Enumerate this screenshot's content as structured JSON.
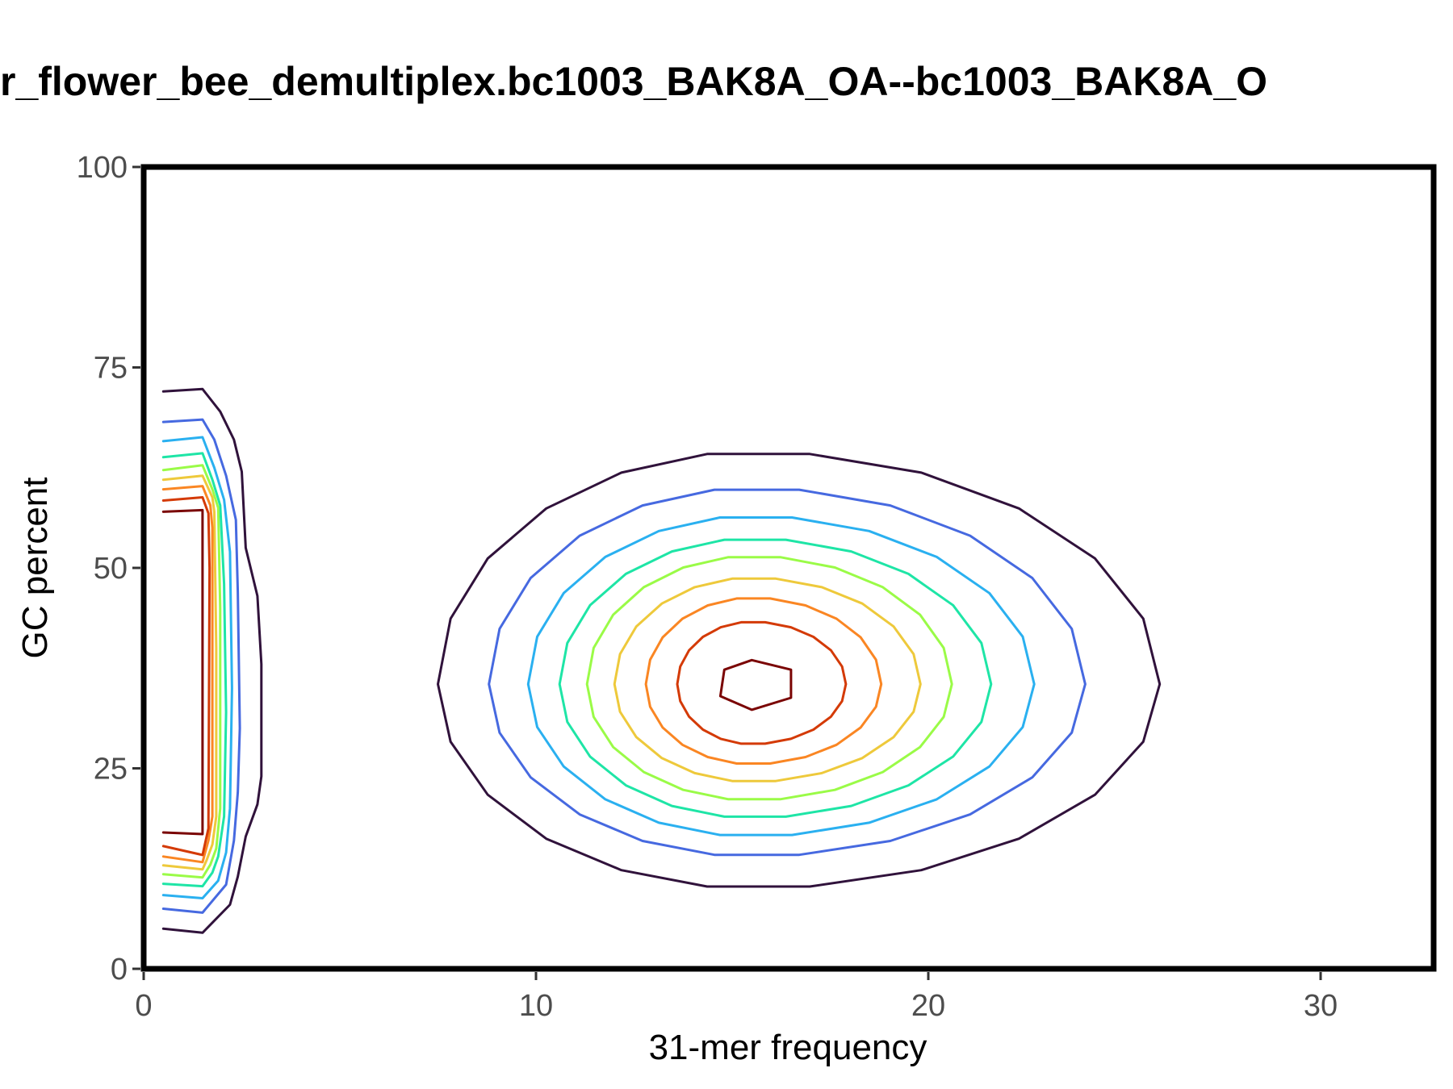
{
  "chart_data": {
    "type": "contour",
    "title": "r_flower_bee_demultiplex.bc1003_BAK8A_OA--bc1003_BAK8A_O",
    "xlabel": "31-mer frequency",
    "ylabel": "GC percent",
    "xlim": [
      0,
      33
    ],
    "ylim": [
      0,
      100
    ],
    "x_ticks": [
      0,
      10,
      20,
      30
    ],
    "x_tick_labels": [
      "0",
      "10",
      "20",
      "30"
    ],
    "y_ticks": [
      0,
      25,
      50,
      75,
      100
    ],
    "y_tick_labels": [
      "0",
      "25",
      "50",
      "75",
      "100"
    ],
    "grid": false,
    "legend": "none",
    "levels": [
      {
        "color": "#30123b"
      },
      {
        "color": "#4669e0"
      },
      {
        "color": "#2ab0f0"
      },
      {
        "color": "#1ee5a6"
      },
      {
        "color": "#9afb47"
      },
      {
        "color": "#eec93b"
      },
      {
        "color": "#fa8623"
      },
      {
        "color": "#d43a06"
      },
      {
        "color": "#7a0403"
      }
    ],
    "peaks": [
      {
        "name": "main-peak",
        "center": [
          15.5,
          35.5
        ],
        "rings": [
          {
            "level": 0,
            "xl": 7.5,
            "xr": 25.9,
            "yt": 64.5,
            "yb": 10.0
          },
          {
            "level": 1,
            "xl": 8.8,
            "xr": 24.0,
            "yt": 60.0,
            "yb": 14.0
          },
          {
            "level": 2,
            "xl": 9.8,
            "xr": 22.7,
            "yt": 56.5,
            "yb": 16.5
          },
          {
            "level": 3,
            "xl": 10.6,
            "xr": 21.6,
            "yt": 53.7,
            "yb": 18.8
          },
          {
            "level": 4,
            "xl": 11.3,
            "xr": 20.6,
            "yt": 51.5,
            "yb": 21.0
          },
          {
            "level": 5,
            "xl": 12.0,
            "xr": 19.8,
            "yt": 48.8,
            "yb": 23.3
          },
          {
            "level": 6,
            "xl": 12.8,
            "xr": 18.8,
            "yt": 46.3,
            "yb": 25.5
          },
          {
            "level": 7,
            "xl": 13.6,
            "xr": 17.9,
            "yt": 43.3,
            "yb": 28.0
          }
        ],
        "core": [
          [
            15.5,
            38.5
          ],
          [
            16.5,
            37.3
          ],
          [
            16.5,
            33.8
          ],
          [
            15.5,
            32.3
          ],
          [
            14.7,
            34.0
          ],
          [
            14.8,
            37.3
          ],
          [
            15.5,
            38.5
          ]
        ]
      },
      {
        "name": "edge-peak",
        "rings": [
          [
            [
              0.5,
              72.0
            ],
            [
              1.5,
              72.3
            ],
            [
              1.95,
              69.5
            ],
            [
              2.3,
              66.0
            ],
            [
              2.5,
              62.0
            ],
            [
              2.6,
              52.5
            ],
            [
              2.9,
              46.5
            ],
            [
              3.0,
              38.0
            ],
            [
              3.0,
              24.0
            ],
            [
              2.9,
              20.5
            ],
            [
              2.6,
              16.5
            ],
            [
              2.4,
              11.5
            ],
            [
              2.2,
              8.0
            ],
            [
              1.5,
              4.5
            ],
            [
              0.5,
              5.0
            ]
          ],
          [
            [
              0.5,
              68.2
            ],
            [
              1.5,
              68.5
            ],
            [
              1.8,
              66.0
            ],
            [
              2.1,
              61.5
            ],
            [
              2.35,
              56.0
            ],
            [
              2.4,
              47.0
            ],
            [
              2.45,
              30.0
            ],
            [
              2.4,
              22.0
            ],
            [
              2.3,
              16.0
            ],
            [
              2.1,
              10.5
            ],
            [
              1.5,
              7.0
            ],
            [
              0.5,
              7.5
            ]
          ],
          [
            [
              0.5,
              65.8
            ],
            [
              1.5,
              66.3
            ],
            [
              1.8,
              62.5
            ],
            [
              2.05,
              58.5
            ],
            [
              2.2,
              52.0
            ],
            [
              2.25,
              35.0
            ],
            [
              2.2,
              20.0
            ],
            [
              2.1,
              14.5
            ],
            [
              1.9,
              11.0
            ],
            [
              1.5,
              8.8
            ],
            [
              0.5,
              9.2
            ]
          ],
          [
            [
              0.5,
              63.8
            ],
            [
              1.5,
              64.3
            ],
            [
              1.75,
              61.0
            ],
            [
              1.95,
              57.8
            ],
            [
              2.05,
              48.0
            ],
            [
              2.1,
              32.0
            ],
            [
              2.05,
              19.0
            ],
            [
              1.9,
              14.0
            ],
            [
              1.75,
              12.0
            ],
            [
              1.5,
              10.3
            ],
            [
              0.5,
              10.6
            ]
          ],
          [
            [
              0.5,
              62.2
            ],
            [
              1.5,
              62.8
            ],
            [
              1.75,
              59.8
            ],
            [
              1.9,
              57.5
            ],
            [
              1.95,
              45.0
            ],
            [
              1.95,
              20.0
            ],
            [
              1.85,
              15.0
            ],
            [
              1.7,
              13.0
            ],
            [
              1.5,
              11.4
            ],
            [
              0.5,
              11.8
            ]
          ],
          [
            [
              0.5,
              61.0
            ],
            [
              1.5,
              61.5
            ],
            [
              1.75,
              58.8
            ],
            [
              1.8,
              57.0
            ],
            [
              1.85,
              40.0
            ],
            [
              1.85,
              19.0
            ],
            [
              1.75,
              15.5
            ],
            [
              1.6,
              13.5
            ],
            [
              1.5,
              12.4
            ],
            [
              0.5,
              12.9
            ]
          ],
          [
            [
              0.5,
              59.8
            ],
            [
              1.5,
              60.2
            ],
            [
              1.7,
              57.8
            ],
            [
              1.75,
              55.0
            ],
            [
              1.75,
              35.0
            ],
            [
              1.75,
              19.0
            ],
            [
              1.65,
              16.0
            ],
            [
              1.5,
              13.3
            ],
            [
              0.5,
              14.0
            ]
          ],
          [
            [
              0.5,
              58.4
            ],
            [
              1.5,
              58.8
            ],
            [
              1.65,
              56.8
            ],
            [
              1.68,
              50.0
            ],
            [
              1.65,
              17.5
            ],
            [
              1.5,
              14.2
            ],
            [
              0.5,
              15.3
            ]
          ],
          [
            [
              0.5,
              57.0
            ],
            [
              1.5,
              57.2
            ],
            [
              1.5,
              16.8
            ],
            [
              0.5,
              17.0
            ]
          ]
        ]
      }
    ]
  }
}
